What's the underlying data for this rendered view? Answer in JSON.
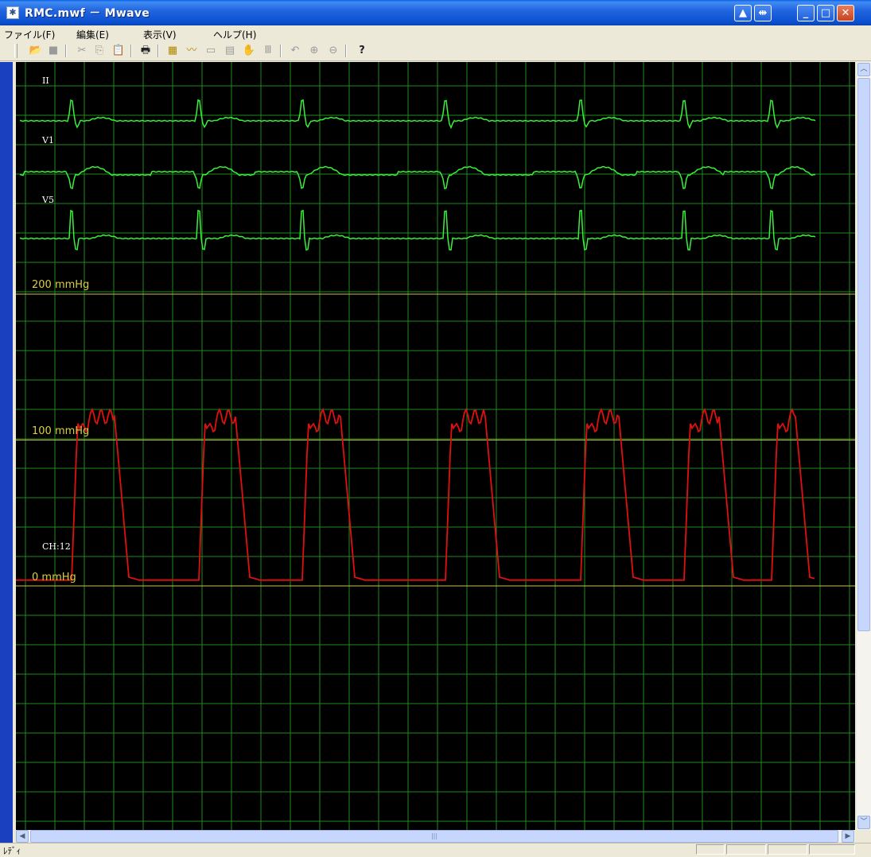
{
  "window": {
    "title": "RMC.mwf － Mwave",
    "controls": [
      "restore-up",
      "restore-right",
      "minimize",
      "maximize",
      "close"
    ]
  },
  "menu": [
    {
      "label": "ファイル(F)"
    },
    {
      "label": "編集(E)"
    },
    {
      "label": "表示(V)"
    },
    {
      "label": "ヘルプ(H)"
    }
  ],
  "toolbar": {
    "icons": [
      "open-folder-icon",
      "save-icon",
      "cut-icon",
      "copy-icon",
      "paste-icon",
      "print-icon",
      "channel-select-icon",
      "waveform-icon",
      "ruler-icon",
      "measure-icon",
      "hand-icon",
      "text-icon",
      "undo-zoom-icon",
      "zoom-in-icon",
      "zoom-out-icon",
      "help-icon"
    ]
  },
  "plot": {
    "background": "#000000",
    "grid_color": "#1f8a1f",
    "ecg_color": "#38f038",
    "pressure_color": "#e01010",
    "ref_line_color": "#c8c050",
    "channels": [
      {
        "label": "II"
      },
      {
        "label": "V1"
      },
      {
        "label": "V5"
      },
      {
        "label": "CH:12"
      }
    ],
    "pressure_labels": [
      {
        "label": "200 mmHg",
        "value": 200
      },
      {
        "label": "100 mmHg",
        "value": 100
      },
      {
        "label": "0 mmHg",
        "value": 0
      }
    ],
    "beat_times_fraction": [
      0.05,
      0.21,
      0.34,
      0.52,
      0.69,
      0.82,
      0.93
    ]
  },
  "status": {
    "text": "ﾚﾃﾞｨ"
  }
}
